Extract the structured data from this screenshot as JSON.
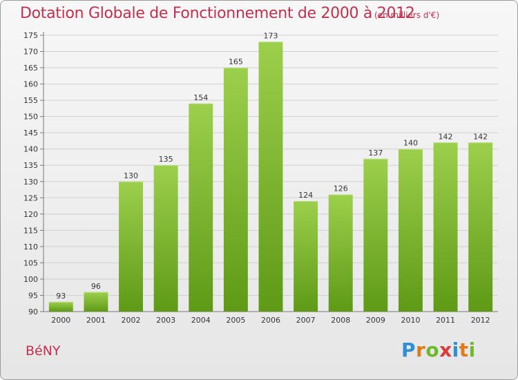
{
  "header": {
    "title": "Dotation Globale de Fonctionnement de 2000 à 2012",
    "subtitle": "(en milliers d'€)"
  },
  "footer": {
    "commune": "BéNY",
    "logo": [
      "P",
      "r",
      "o",
      "x",
      "i",
      "t",
      "i"
    ]
  },
  "colors": {
    "bar_top": "#9ccf4c",
    "bar_bottom": "#5e9a16",
    "title": "#c0304f"
  },
  "chart_data": {
    "type": "bar",
    "title": "Dotation Globale de Fonctionnement de 2000 à 2012",
    "subtitle": "(en milliers d'€)",
    "categories": [
      "2000",
      "2001",
      "2002",
      "2003",
      "2004",
      "2005",
      "2006",
      "2007",
      "2008",
      "2009",
      "2010",
      "2011",
      "2012"
    ],
    "values": [
      93,
      96,
      130,
      135,
      154,
      165,
      173,
      124,
      126,
      137,
      140,
      142,
      142
    ],
    "ylim": [
      90,
      175
    ],
    "yticks": [
      90,
      95,
      100,
      105,
      110,
      115,
      120,
      125,
      130,
      135,
      140,
      145,
      150,
      155,
      160,
      165,
      170,
      175
    ],
    "grid": true,
    "legend": "none"
  }
}
